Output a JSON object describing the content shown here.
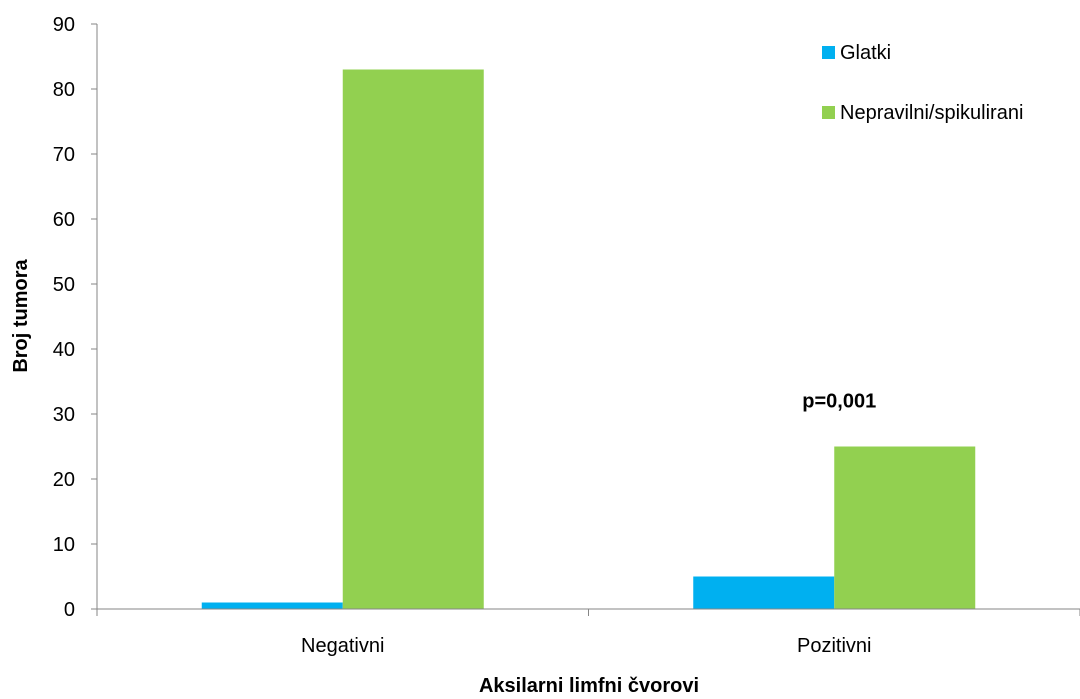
{
  "chart_data": {
    "type": "bar",
    "categories": [
      "Negativni",
      "Pozitivni"
    ],
    "series": [
      {
        "name": "Glatki",
        "values": [
          1,
          5
        ],
        "color": "#00B0F0"
      },
      {
        "name": "Nepravilni/spikulirani",
        "values": [
          83,
          25
        ],
        "color": "#92D050"
      }
    ],
    "xlabel": "Aksilarni limfni čvorovi",
    "ylabel": "Broj tumora",
    "ylim": [
      0,
      90
    ],
    "yticks": [
      0,
      10,
      20,
      30,
      40,
      50,
      60,
      70,
      80,
      90
    ],
    "grid": false,
    "legend_position": "top-right",
    "annotations": [
      {
        "text": "p=0,001",
        "category": "Pozitivni",
        "y": 31
      }
    ]
  }
}
